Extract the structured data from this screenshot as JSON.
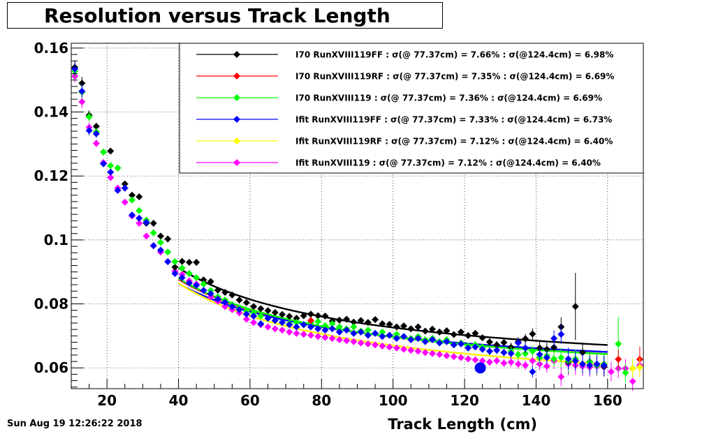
{
  "header": {
    "title": "Resolution versus Track Length",
    "timestamp": "Sun Aug 19 12:26:22 2018"
  },
  "chart_data": {
    "type": "scatter",
    "title": "Resolution versus Track Length",
    "xlabel": "Track Length (cm)",
    "ylabel": "",
    "xlim": [
      10,
      170
    ],
    "ylim": [
      0.0535,
      0.1615
    ],
    "xticks": [
      20,
      40,
      60,
      80,
      100,
      120,
      140,
      160
    ],
    "yticks": [
      0.06,
      0.08,
      0.1,
      0.12,
      0.14,
      0.16
    ],
    "yticklabels": [
      "0.06",
      "0.08",
      "0.1",
      "0.12",
      "0.14",
      "0.16"
    ],
    "grid": true,
    "legend_position": "top-right",
    "legend": [
      {
        "label": "I70  RunXVIII119FF : σ(@ 77.37cm) =  7.66% : σ(@124.4cm) =  6.98%",
        "color": "#000000"
      },
      {
        "label": "I70  RunXVIII119RF : σ(@ 77.37cm) =  7.35% : σ(@124.4cm) =  6.69%",
        "color": "#ff0000"
      },
      {
        "label": "I70  RunXVIII119 : σ(@ 77.37cm) =  7.36% : σ(@124.4cm) =  6.69%",
        "color": "#00ff00"
      },
      {
        "label": "Ifit RunXVIII119FF : σ(@ 77.37cm) =  7.33% : σ(@124.4cm) =  6.73%",
        "color": "#0000ff"
      },
      {
        "label": "Ifit RunXVIII119RF : σ(@ 77.37cm) =  7.12% : σ(@124.4cm) =  6.40%",
        "color": "#ffff00"
      },
      {
        "label": "Ifit RunXVIII119 : σ(@ 77.37cm) =  7.12% : σ(@124.4cm) =  6.40%",
        "color": "#ff00ff"
      }
    ],
    "series": [
      {
        "color": "#000000",
        "x": [
          11,
          13,
          15,
          17,
          19,
          21,
          23,
          25,
          27,
          29,
          31,
          33,
          35,
          37,
          39,
          41,
          43,
          45,
          47,
          49,
          51,
          53,
          55,
          57,
          59,
          61,
          63,
          65,
          67,
          69,
          71,
          73,
          75,
          77,
          79,
          81,
          83,
          85,
          87,
          89,
          91,
          93,
          95,
          97,
          99,
          101,
          103,
          105,
          107,
          109,
          111,
          113,
          115,
          117,
          119,
          121,
          123,
          125,
          127,
          129,
          131,
          133,
          135,
          137,
          139,
          141,
          143,
          145,
          147,
          149,
          151,
          153,
          155,
          157,
          159
        ],
        "y": [
          0.154,
          0.149,
          0.139,
          0.1355,
          0.1275,
          0.1278,
          0.1225,
          0.1175,
          0.114,
          0.1135,
          0.1052,
          0.1052,
          0.1012,
          0.1003,
          0.0915,
          0.0933,
          0.093,
          0.093,
          0.0875,
          0.087,
          0.0843,
          0.0836,
          0.0828,
          0.0812,
          0.0804,
          0.0792,
          0.0785,
          0.0779,
          0.0773,
          0.0767,
          0.0761,
          0.0755,
          0.0763,
          0.0768,
          0.0763,
          0.0762,
          0.0746,
          0.0749,
          0.0752,
          0.0743,
          0.0748,
          0.0742,
          0.0751,
          0.0738,
          0.0736,
          0.0728,
          0.0731,
          0.0722,
          0.0728,
          0.0715,
          0.0721,
          0.0712,
          0.0716,
          0.0704,
          0.0712,
          0.0701,
          0.0708,
          0.0694,
          0.0681,
          0.0672,
          0.0679,
          0.0664,
          0.0681,
          0.0691,
          0.0706,
          0.0662,
          0.0658,
          0.0664,
          0.0728,
          0.0618,
          0.0792,
          0.0648,
          0.0619,
          0.0608,
          0.0604
        ],
        "err": [
          0.002,
          0.002,
          0.0015,
          0.0012,
          0.001,
          0.001,
          0.001,
          0.001,
          0.001,
          0.001,
          0.001,
          0.001,
          0.001,
          0.001,
          0.001,
          0.001,
          0.001,
          0.001,
          0.001,
          0.0008,
          0.0008,
          0.0008,
          0.0008,
          0.0008,
          0.0008,
          0.0008,
          0.0008,
          0.0008,
          0.0008,
          0.0008,
          0.0008,
          0.0008,
          0.0008,
          0.0008,
          0.0008,
          0.0008,
          0.0008,
          0.0008,
          0.0008,
          0.0008,
          0.0008,
          0.0008,
          0.0008,
          0.0008,
          0.0008,
          0.0008,
          0.0008,
          0.0008,
          0.0008,
          0.0008,
          0.0008,
          0.001,
          0.001,
          0.001,
          0.001,
          0.001,
          0.001,
          0.001,
          0.0012,
          0.0012,
          0.0012,
          0.0015,
          0.0015,
          0.0015,
          0.0018,
          0.002,
          0.002,
          0.0025,
          0.003,
          0.0035,
          0.0105,
          0.003,
          0.003,
          0.003,
          0.003
        ]
      },
      {
        "color": "#ff0000",
        "x": [
          77,
          163,
          169
        ],
        "y": [
          0.0748,
          0.0627,
          0.0627
        ],
        "err": [
          0.0008,
          0.003,
          0.004
        ]
      },
      {
        "color": "#00ff00",
        "x": [
          11,
          13,
          15,
          17,
          19,
          21,
          23,
          25,
          27,
          29,
          31,
          33,
          35,
          37,
          39,
          41,
          43,
          45,
          47,
          49,
          51,
          53,
          55,
          57,
          59,
          61,
          63,
          65,
          67,
          69,
          71,
          73,
          75,
          77,
          79,
          81,
          83,
          85,
          87,
          89,
          91,
          93,
          95,
          97,
          99,
          101,
          103,
          105,
          107,
          109,
          111,
          113,
          115,
          117,
          119,
          121,
          123,
          125,
          127,
          129,
          131,
          133,
          135,
          137,
          139,
          141,
          143,
          145,
          147,
          149,
          151,
          153,
          155,
          157,
          159,
          163,
          165,
          167
        ],
        "y": [
          0.1528,
          0.1462,
          0.1385,
          0.1338,
          0.1275,
          0.1232,
          0.1225,
          0.1162,
          0.1125,
          0.1092,
          0.1062,
          0.1022,
          0.0992,
          0.0962,
          0.0932,
          0.0912,
          0.0895,
          0.0882,
          0.0862,
          0.0842,
          0.0822,
          0.0812,
          0.0798,
          0.0785,
          0.0778,
          0.0772,
          0.0762,
          0.0755,
          0.0748,
          0.0742,
          0.0738,
          0.0742,
          0.0735,
          0.0742,
          0.0745,
          0.0732,
          0.0738,
          0.0728,
          0.0722,
          0.0728,
          0.0715,
          0.0718,
          0.0708,
          0.0712,
          0.0702,
          0.0705,
          0.0698,
          0.0692,
          0.0698,
          0.0688,
          0.0692,
          0.0682,
          0.0688,
          0.0672,
          0.0678,
          0.0668,
          0.0672,
          0.0665,
          0.0652,
          0.0655,
          0.0648,
          0.0652,
          0.0642,
          0.0645,
          0.0652,
          0.0632,
          0.0638,
          0.0628,
          0.0632,
          0.0622,
          0.0628,
          0.0612,
          0.0618,
          0.0608,
          0.0612,
          0.0675,
          0.0585,
          0.0598
        ],
        "err": [
          0.002,
          0.002,
          0.0015,
          0.0012,
          0.001,
          0.001,
          0.001,
          0.001,
          0.001,
          0.001,
          0.001,
          0.001,
          0.001,
          0.001,
          0.001,
          0.001,
          0.001,
          0.001,
          0.001,
          0.0008,
          0.0008,
          0.0008,
          0.0008,
          0.0008,
          0.0008,
          0.0008,
          0.0008,
          0.0008,
          0.0008,
          0.0008,
          0.0008,
          0.0008,
          0.0008,
          0.0008,
          0.0008,
          0.0008,
          0.0008,
          0.0008,
          0.0008,
          0.0008,
          0.0008,
          0.0008,
          0.0008,
          0.0008,
          0.0008,
          0.0008,
          0.0008,
          0.0008,
          0.0008,
          0.0008,
          0.0008,
          0.001,
          0.001,
          0.001,
          0.001,
          0.001,
          0.001,
          0.001,
          0.0012,
          0.0012,
          0.0012,
          0.0015,
          0.0015,
          0.0015,
          0.0018,
          0.002,
          0.002,
          0.0025,
          0.003,
          0.0035,
          0.003,
          0.003,
          0.003,
          0.003,
          0.003,
          0.0085,
          0.003,
          0.003
        ]
      },
      {
        "color": "#0000ff",
        "x": [
          11,
          13,
          15,
          17,
          19,
          21,
          23,
          25,
          27,
          29,
          31,
          33,
          35,
          37,
          39,
          41,
          43,
          45,
          47,
          49,
          51,
          53,
          55,
          57,
          59,
          61,
          63,
          65,
          67,
          69,
          71,
          73,
          75,
          77,
          79,
          81,
          83,
          85,
          87,
          89,
          91,
          93,
          95,
          97,
          99,
          101,
          103,
          105,
          107,
          109,
          111,
          113,
          115,
          117,
          119,
          121,
          123,
          124.4,
          125,
          127,
          129,
          131,
          133,
          135,
          137,
          139,
          141,
          143,
          145,
          147,
          149,
          151,
          153,
          155,
          157,
          159
        ],
        "y": [
          0.1535,
          0.1465,
          0.1342,
          0.1332,
          0.1238,
          0.1212,
          0.1155,
          0.1162,
          0.1078,
          0.1068,
          0.1055,
          0.0982,
          0.0968,
          0.0932,
          0.0895,
          0.0882,
          0.0865,
          0.0858,
          0.0842,
          0.0832,
          0.0815,
          0.0805,
          0.0792,
          0.0782,
          0.0768,
          0.0762,
          0.0738,
          0.0755,
          0.0748,
          0.0742,
          0.0735,
          0.0728,
          0.0735,
          0.0728,
          0.0722,
          0.0718,
          0.0722,
          0.0712,
          0.0718,
          0.0708,
          0.0712,
          0.0702,
          0.0708,
          0.0698,
          0.0702,
          0.0692,
          0.0698,
          0.0688,
          0.0692,
          0.0682,
          0.0688,
          0.0678,
          0.0682,
          0.0672,
          0.0675,
          0.0662,
          0.0665,
          0.06,
          0.0658,
          0.0652,
          0.0655,
          0.0648,
          0.0645,
          0.0678,
          0.0662,
          0.0588,
          0.0642,
          0.0632,
          0.0692,
          0.0705,
          0.0628,
          0.0622,
          0.0612,
          0.0608,
          0.0612,
          0.0608
        ],
        "err": [
          0.002,
          0.002,
          0.0015,
          0.0012,
          0.001,
          0.001,
          0.001,
          0.001,
          0.001,
          0.001,
          0.001,
          0.001,
          0.001,
          0.001,
          0.001,
          0.001,
          0.001,
          0.001,
          0.001,
          0.0008,
          0.0008,
          0.0008,
          0.0008,
          0.0008,
          0.0008,
          0.0008,
          0.0008,
          0.0008,
          0.0008,
          0.0008,
          0.0008,
          0.0008,
          0.0008,
          0.0008,
          0.0008,
          0.0008,
          0.0008,
          0.0008,
          0.0008,
          0.0008,
          0.0008,
          0.0008,
          0.0008,
          0.0008,
          0.0008,
          0.0008,
          0.0008,
          0.0008,
          0.0008,
          0.0008,
          0.0008,
          0.001,
          0.001,
          0.001,
          0.001,
          0.001,
          0.001,
          0,
          0.001,
          0.0012,
          0.0012,
          0.0012,
          0.0015,
          0.0015,
          0.0015,
          0.0018,
          0.002,
          0.002,
          0.0025,
          0.003,
          0.0035,
          0.003,
          0.003,
          0.003,
          0.003,
          0.003
        ]
      },
      {
        "color": "#ffff00",
        "x": [
          167,
          169
        ],
        "y": [
          0.0598,
          0.0602
        ],
        "err": [
          0.003,
          0.003
        ]
      },
      {
        "color": "#ff00ff",
        "x": [
          11,
          13,
          15,
          17,
          19,
          21,
          23,
          25,
          27,
          29,
          31,
          33,
          35,
          37,
          39,
          41,
          43,
          45,
          47,
          49,
          51,
          53,
          55,
          57,
          59,
          61,
          63,
          65,
          67,
          69,
          71,
          73,
          75,
          77,
          79,
          81,
          83,
          85,
          87,
          89,
          91,
          93,
          95,
          97,
          99,
          101,
          103,
          105,
          107,
          109,
          111,
          113,
          115,
          117,
          119,
          121,
          123,
          125,
          127,
          129,
          131,
          133,
          135,
          137,
          139,
          141,
          143,
          145,
          147,
          149,
          151,
          153,
          155,
          157,
          159,
          161,
          163,
          165,
          167,
          169
        ],
        "y": [
          0.1512,
          0.1432,
          0.1352,
          0.1302,
          0.1242,
          0.1195,
          0.1162,
          0.1118,
          0.1075,
          0.1052,
          0.1012,
          0.0982,
          0.0962,
          0.0932,
          0.0902,
          0.0892,
          0.0872,
          0.0862,
          0.0842,
          0.0822,
          0.0808,
          0.0792,
          0.0782,
          0.0772,
          0.0752,
          0.0742,
          0.0735,
          0.0728,
          0.0722,
          0.0718,
          0.0712,
          0.0708,
          0.0705,
          0.0702,
          0.0698,
          0.0695,
          0.0692,
          0.0688,
          0.0685,
          0.0682,
          0.0678,
          0.0675,
          0.0672,
          0.0668,
          0.0665,
          0.0662,
          0.0658,
          0.0655,
          0.0652,
          0.0648,
          0.0645,
          0.0642,
          0.0638,
          0.0635,
          0.0632,
          0.0628,
          0.0625,
          0.0622,
          0.0618,
          0.0622,
          0.0615,
          0.0618,
          0.0612,
          0.0608,
          0.0622,
          0.0612,
          0.0605,
          0.0622,
          0.0572,
          0.0612,
          0.0608,
          0.0605,
          0.0602,
          0.0605,
          0.0602,
          0.0588,
          0.0598,
          0.0598,
          0.0558,
          0.0608
        ],
        "err": [
          0.002,
          0.002,
          0.0015,
          0.0012,
          0.001,
          0.001,
          0.001,
          0.001,
          0.001,
          0.001,
          0.001,
          0.001,
          0.001,
          0.001,
          0.001,
          0.001,
          0.001,
          0.001,
          0.001,
          0.0008,
          0.0008,
          0.0008,
          0.0008,
          0.0008,
          0.0008,
          0.0008,
          0.0008,
          0.0008,
          0.0008,
          0.0008,
          0.0008,
          0.0008,
          0.0008,
          0.0008,
          0.0008,
          0.0008,
          0.0008,
          0.0008,
          0.0008,
          0.0008,
          0.0008,
          0.0008,
          0.0008,
          0.0008,
          0.0008,
          0.0008,
          0.0008,
          0.0008,
          0.0008,
          0.0008,
          0.0008,
          0.001,
          0.001,
          0.001,
          0.001,
          0.001,
          0.001,
          0.001,
          0.0012,
          0.0012,
          0.0012,
          0.0015,
          0.0015,
          0.0015,
          0.0018,
          0.002,
          0.002,
          0.0025,
          0.003,
          0.0035,
          0.003,
          0.003,
          0.003,
          0.003,
          0.003,
          0.003,
          0.003,
          0.003,
          0.003,
          0.003
        ]
      }
    ],
    "fits": [
      {
        "color": "#000000",
        "x_range": [
          40,
          160
        ],
        "y_at_77": 0.0766,
        "y_at_124": 0.0698
      },
      {
        "color": "#ff0000",
        "x_range": [
          40,
          160
        ],
        "y_at_77": 0.0735,
        "y_at_124": 0.0669
      },
      {
        "color": "#00ff00",
        "x_range": [
          40,
          160
        ],
        "y_at_77": 0.0736,
        "y_at_124": 0.0669
      },
      {
        "color": "#0000ff",
        "x_range": [
          40,
          160
        ],
        "y_at_77": 0.0733,
        "y_at_124": 0.0673
      },
      {
        "color": "#ffff00",
        "x_range": [
          40,
          160
        ],
        "y_at_77": 0.0712,
        "y_at_124": 0.064
      },
      {
        "color": "#ff00ff",
        "x_range": [
          40,
          160
        ],
        "y_at_77": 0.0712,
        "y_at_124": 0.064
      }
    ]
  }
}
